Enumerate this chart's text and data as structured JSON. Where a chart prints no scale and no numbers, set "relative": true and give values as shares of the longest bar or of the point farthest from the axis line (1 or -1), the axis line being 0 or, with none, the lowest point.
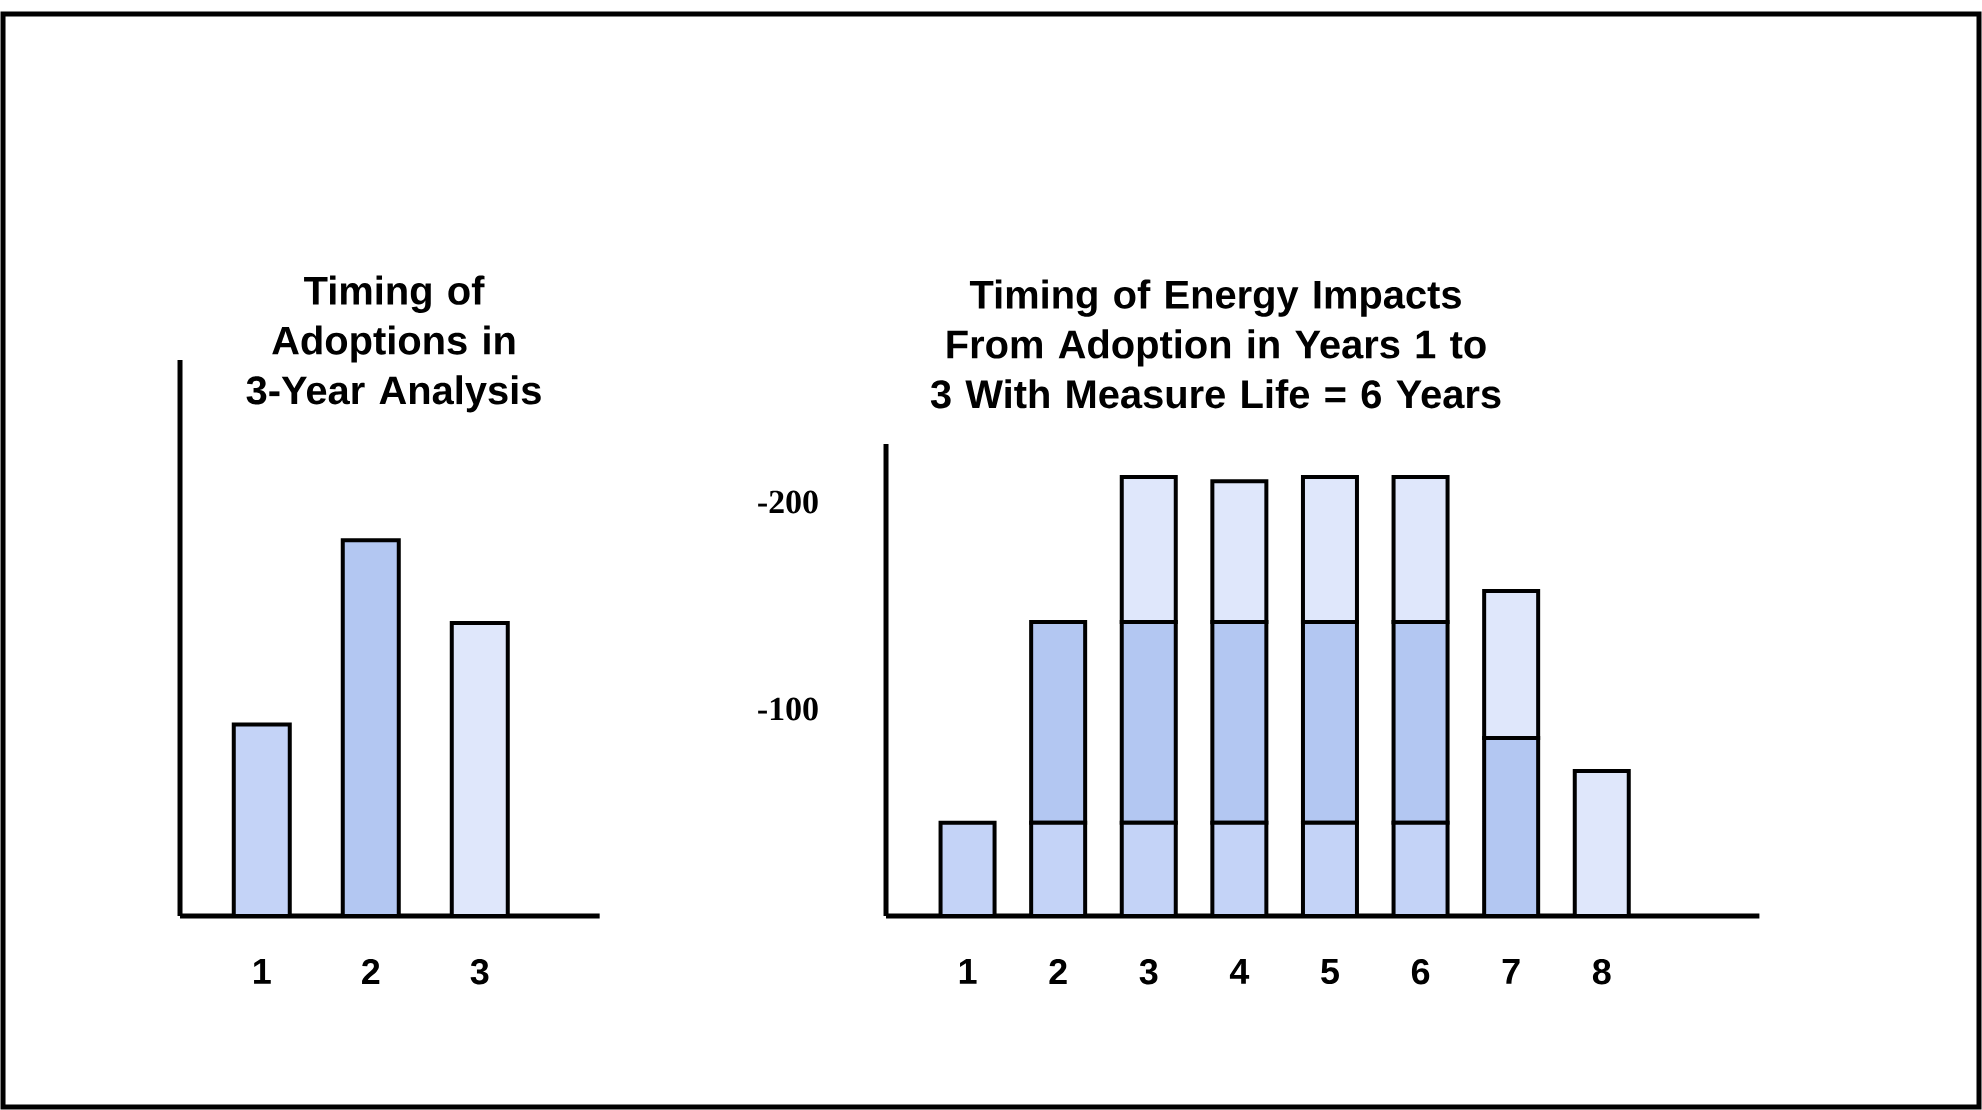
{
  "chart_data": [
    {
      "type": "bar",
      "title": "Timing of Adoptions in 3-Year Analysis",
      "relative": true,
      "categories": [
        "1",
        "2",
        "3"
      ],
      "values": [
        0.51,
        1,
        0.78
      ],
      "colors": [
        "#c4d3f7",
        "#b3c7f2",
        "#dfe7fb"
      ]
    },
    {
      "type": "bar",
      "title": "Timing of Energy Impacts From Adoption in Years 1 to 3 With Measure Life = 6 Years",
      "categories": [
        "1",
        "2",
        "3",
        "4",
        "5",
        "6",
        "7",
        "8"
      ],
      "stacked": true,
      "ylim": [
        0,
        -228
      ],
      "yticks": [
        -100,
        -200
      ],
      "series": [
        {
          "color": "#c4d3f7",
          "values": [
            -45,
            -45,
            -45,
            -45,
            -45,
            -45,
            null,
            null
          ]
        },
        {
          "color": "#b3c7f2",
          "values": [
            null,
            -97,
            -97,
            -97,
            -97,
            -97,
            -86,
            null
          ]
        },
        {
          "color": "#dfe7fb",
          "values": [
            null,
            null,
            -70,
            -68,
            -70,
            -70,
            -71,
            -70
          ]
        }
      ]
    }
  ]
}
